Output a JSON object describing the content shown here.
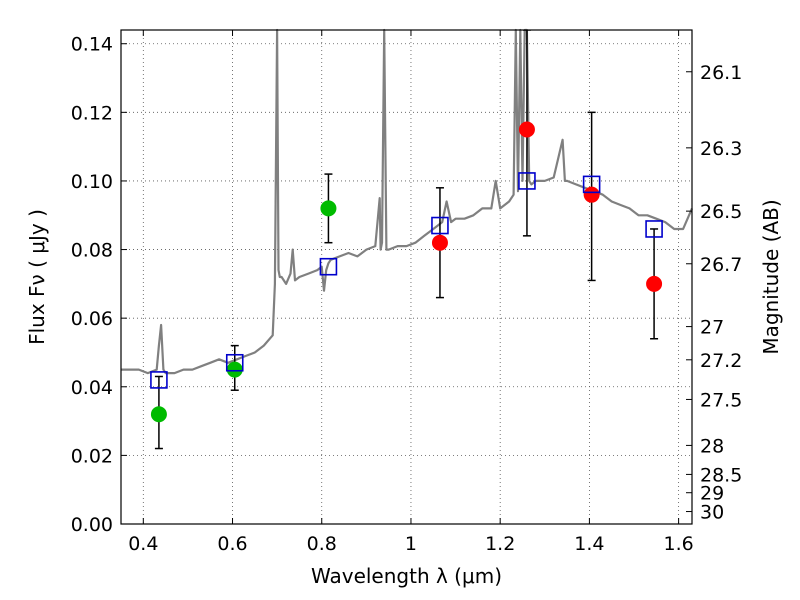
{
  "chart_data": {
    "type": "scatter",
    "title": "",
    "xlabel": "Wavelength  λ (μm)",
    "ylabel": "Flux  Fν  ( μJy )",
    "ylabel_right": "Magnitude (AB)",
    "xlim": [
      0.35,
      1.63
    ],
    "ylim": [
      0.0,
      0.144
    ],
    "grid": true,
    "x_ticks": [
      0.4,
      0.6,
      0.8,
      1.0,
      1.2,
      1.4,
      1.6
    ],
    "x_tick_labels": [
      "0.4",
      "0.6",
      "0.8",
      "1",
      "1.2",
      "1.4",
      "1.6"
    ],
    "y_ticks": [
      0.0,
      0.02,
      0.04,
      0.06,
      0.08,
      0.1,
      0.12,
      0.14
    ],
    "y_tick_labels": [
      "0.00",
      "0.02",
      "0.04",
      "0.06",
      "0.08",
      "0.10",
      "0.12",
      "0.14"
    ],
    "right_ticks": [
      {
        "mag": 26.1,
        "label": "26.1"
      },
      {
        "mag": 26.3,
        "label": "26.3"
      },
      {
        "mag": 26.5,
        "label": "26.5"
      },
      {
        "mag": 26.7,
        "label": "26.7"
      },
      {
        "mag": 27.0,
        "label": "27"
      },
      {
        "mag": 27.2,
        "label": "27.2"
      },
      {
        "mag": 27.5,
        "label": "27.5"
      },
      {
        "mag": 28.0,
        "label": "28"
      },
      {
        "mag": 28.5,
        "label": "28.5"
      },
      {
        "mag": 29.0,
        "label": "29"
      },
      {
        "mag": 30.0,
        "label": "30"
      }
    ],
    "spectrum": {
      "color": "#808080",
      "x": [
        0.35,
        0.37,
        0.39,
        0.41,
        0.43,
        0.435,
        0.44,
        0.445,
        0.45,
        0.47,
        0.49,
        0.51,
        0.53,
        0.55,
        0.57,
        0.59,
        0.61,
        0.63,
        0.65,
        0.67,
        0.69,
        0.695,
        0.7,
        0.703,
        0.706,
        0.71,
        0.72,
        0.73,
        0.735,
        0.74,
        0.75,
        0.77,
        0.79,
        0.8,
        0.805,
        0.81,
        0.815,
        0.82,
        0.84,
        0.86,
        0.88,
        0.9,
        0.92,
        0.93,
        0.932,
        0.935,
        0.94,
        0.945,
        0.95,
        0.97,
        0.99,
        1.01,
        1.03,
        1.05,
        1.07,
        1.08,
        1.09,
        1.1,
        1.12,
        1.14,
        1.16,
        1.18,
        1.19,
        1.2,
        1.21,
        1.22,
        1.23,
        1.235,
        1.24,
        1.245,
        1.25,
        1.255,
        1.26,
        1.265,
        1.27,
        1.28,
        1.3,
        1.32,
        1.34,
        1.345,
        1.35,
        1.37,
        1.39,
        1.41,
        1.43,
        1.45,
        1.47,
        1.49,
        1.51,
        1.53,
        1.55,
        1.57,
        1.59,
        1.61,
        1.63
      ],
      "y": [
        0.045,
        0.045,
        0.045,
        0.044,
        0.045,
        0.052,
        0.058,
        0.045,
        0.044,
        0.044,
        0.045,
        0.045,
        0.046,
        0.047,
        0.048,
        0.047,
        0.048,
        0.049,
        0.05,
        0.052,
        0.055,
        0.07,
        0.144,
        0.074,
        0.072,
        0.072,
        0.07,
        0.073,
        0.08,
        0.071,
        0.072,
        0.073,
        0.074,
        0.075,
        0.068,
        0.074,
        0.076,
        0.077,
        0.078,
        0.079,
        0.078,
        0.08,
        0.081,
        0.095,
        0.08,
        0.082,
        0.144,
        0.08,
        0.08,
        0.081,
        0.081,
        0.082,
        0.084,
        0.086,
        0.088,
        0.094,
        0.088,
        0.089,
        0.089,
        0.09,
        0.092,
        0.092,
        0.1,
        0.092,
        0.093,
        0.094,
        0.096,
        0.144,
        0.097,
        0.144,
        0.1,
        0.144,
        0.144,
        0.1,
        0.099,
        0.1,
        0.1,
        0.101,
        0.112,
        0.1,
        0.1,
        0.099,
        0.098,
        0.097,
        0.096,
        0.094,
        0.093,
        0.092,
        0.09,
        0.09,
        0.089,
        0.088,
        0.086,
        0.086,
        0.092
      ]
    },
    "series": [
      {
        "marker": "circle",
        "color": "#00bb00",
        "points": [
          {
            "x": 0.435,
            "y": 0.032,
            "lo": 0.022,
            "hi": 0.043
          },
          {
            "x": 0.605,
            "y": 0.045,
            "lo": 0.039,
            "hi": 0.052
          },
          {
            "x": 0.815,
            "y": 0.092,
            "lo": 0.082,
            "hi": 0.102
          }
        ]
      },
      {
        "marker": "circle",
        "color": "#ff0000",
        "points": [
          {
            "x": 1.065,
            "y": 0.082,
            "lo": 0.066,
            "hi": 0.098
          },
          {
            "x": 1.26,
            "y": 0.115,
            "lo": 0.084,
            "hi": 0.144
          },
          {
            "x": 1.405,
            "y": 0.096,
            "lo": 0.071,
            "hi": 0.12
          },
          {
            "x": 1.545,
            "y": 0.07,
            "lo": 0.054,
            "hi": 0.086
          }
        ]
      },
      {
        "marker": "square",
        "color": "#0000cc",
        "points": [
          {
            "x": 0.435,
            "y": 0.042
          },
          {
            "x": 0.605,
            "y": 0.047
          },
          {
            "x": 0.815,
            "y": 0.075
          },
          {
            "x": 1.065,
            "y": 0.087
          },
          {
            "x": 1.26,
            "y": 0.1
          },
          {
            "x": 1.405,
            "y": 0.099
          },
          {
            "x": 1.545,
            "y": 0.086
          }
        ]
      }
    ]
  }
}
